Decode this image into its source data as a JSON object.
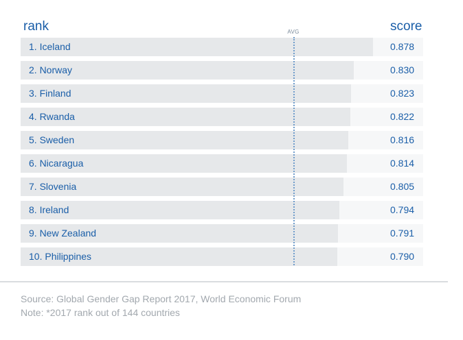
{
  "chart_data": {
    "type": "bar",
    "orientation": "horizontal",
    "headers": {
      "rank": "rank",
      "score": "score"
    },
    "avg_label": "AVG",
    "avg_value": 0.68,
    "xlim": [
      0,
      1
    ],
    "categories": [
      "1. Iceland",
      "2. Norway",
      "3. Finland",
      "4. Rwanda",
      "5. Sweden",
      "6. Nicaragua",
      "7. Slovenia",
      "8. Ireland",
      "9. New Zealand",
      "10. Philippines"
    ],
    "values": [
      0.878,
      0.83,
      0.823,
      0.822,
      0.816,
      0.814,
      0.805,
      0.794,
      0.791,
      0.79
    ],
    "value_labels": [
      "0.878",
      "0.830",
      "0.823",
      "0.822",
      "0.816",
      "0.814",
      "0.805",
      "0.794",
      "0.791",
      "0.790"
    ],
    "legend": "none",
    "grid": false
  },
  "footer": {
    "source": "Source: Global Gender Gap Report 2017, World Economic Forum",
    "note": "Note: *2017 rank out of 144 countries"
  }
}
